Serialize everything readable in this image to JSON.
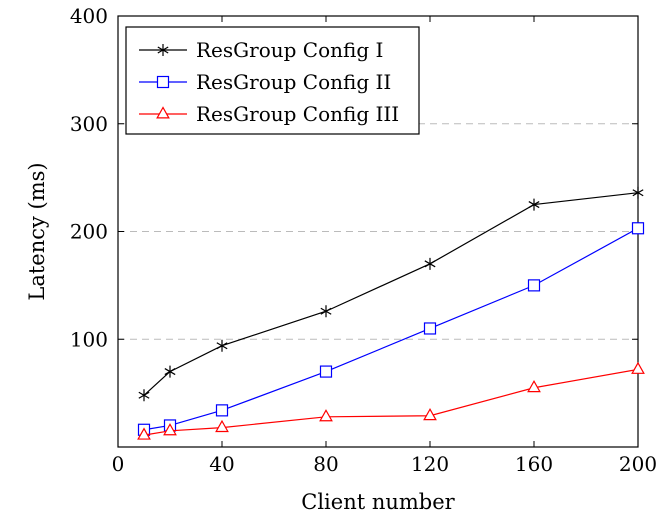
{
  "chart_data": {
    "type": "line",
    "title": "",
    "xlabel": "Client number",
    "ylabel": "Latency (ms)",
    "x_tick_labels": [
      "0",
      "40",
      "80",
      "120",
      "160",
      "200"
    ],
    "y_tick_labels": [
      "100",
      "200",
      "300",
      "400"
    ],
    "x_ticks_positions_note": "categorical-style axis: 0,10?,20?,40,80,120,160,200",
    "x": [
      10,
      20,
      40,
      80,
      120,
      160,
      200
    ],
    "ylim": [
      0,
      400
    ],
    "grid": "horizontal dashed",
    "legend_position": "top-left",
    "series": [
      {
        "name": "ResGroup Config I",
        "marker": "star",
        "color": "#000000",
        "values": [
          48,
          70,
          94,
          126,
          170,
          225,
          236
        ]
      },
      {
        "name": "ResGroup Config II",
        "marker": "square",
        "color": "#0000ff",
        "values": [
          16,
          20,
          34,
          70,
          110,
          150,
          203
        ]
      },
      {
        "name": "ResGroup Config III",
        "marker": "triangle",
        "color": "#ff0000",
        "values": [
          11,
          15,
          18,
          28,
          29,
          55,
          72
        ]
      }
    ]
  }
}
